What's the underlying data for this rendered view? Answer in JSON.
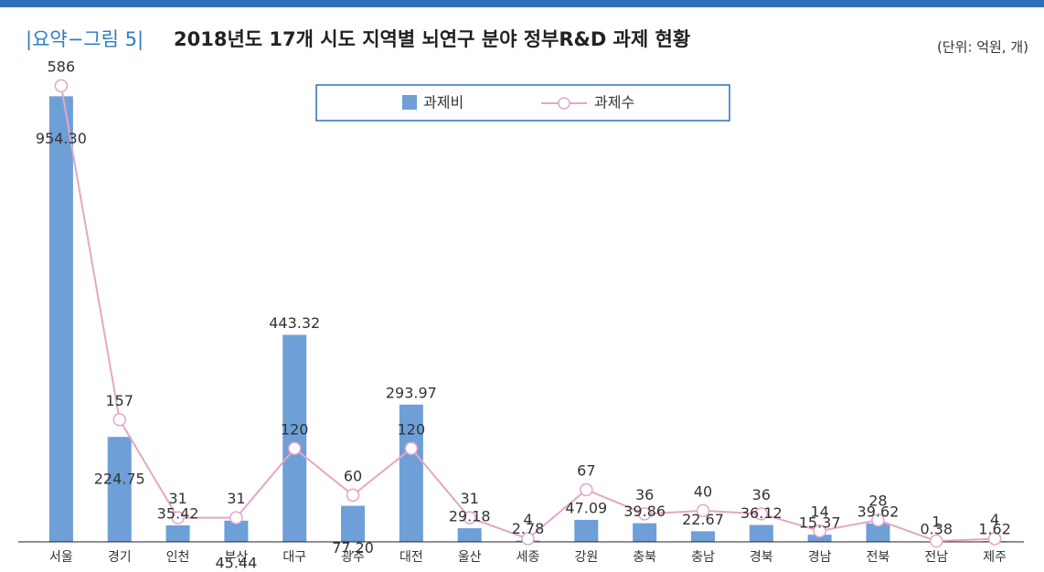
{
  "chart_data": {
    "type": "bar_line",
    "figure_label": "|요약−그림 5|",
    "title": "2018년도 17개 시도 지역별 뇌연구 분야 정부R&D 과제 현황",
    "unit_note": "(단위: 억원, 개)",
    "categories": [
      "서울",
      "경기",
      "인천",
      "부산",
      "대구",
      "광주",
      "대전",
      "울산",
      "세종",
      "강원",
      "충북",
      "충남",
      "경북",
      "경남",
      "전북",
      "전남",
      "제주"
    ],
    "series": [
      {
        "name": "과제비",
        "type": "bar",
        "color": "#6e9fd6",
        "values": [
          954.3,
          224.75,
          35.42,
          45.44,
          443.32,
          77.2,
          293.97,
          29.18,
          2.78,
          47.09,
          39.86,
          22.67,
          36.12,
          15.37,
          39.62,
          0.38,
          1.62
        ],
        "value_labels": [
          "954.30",
          "224.75",
          "35.42",
          "45.44",
          "443.32",
          "77.20",
          "293.97",
          "29.18",
          "2.78",
          "47.09",
          "39.86",
          "22.67",
          "36.12",
          "15.37",
          "39.62",
          "0.38",
          "1.62"
        ]
      },
      {
        "name": "과제수",
        "type": "line",
        "axis": "y2",
        "color": "#e4a6c8",
        "values": [
          586,
          157,
          31,
          31,
          120,
          60,
          120,
          31,
          4,
          67,
          36,
          40,
          36,
          14,
          28,
          1,
          4
        ]
      }
    ],
    "ylim": [
      0,
      1000
    ],
    "y2lim": [
      0,
      600
    ],
    "legend": "top"
  }
}
